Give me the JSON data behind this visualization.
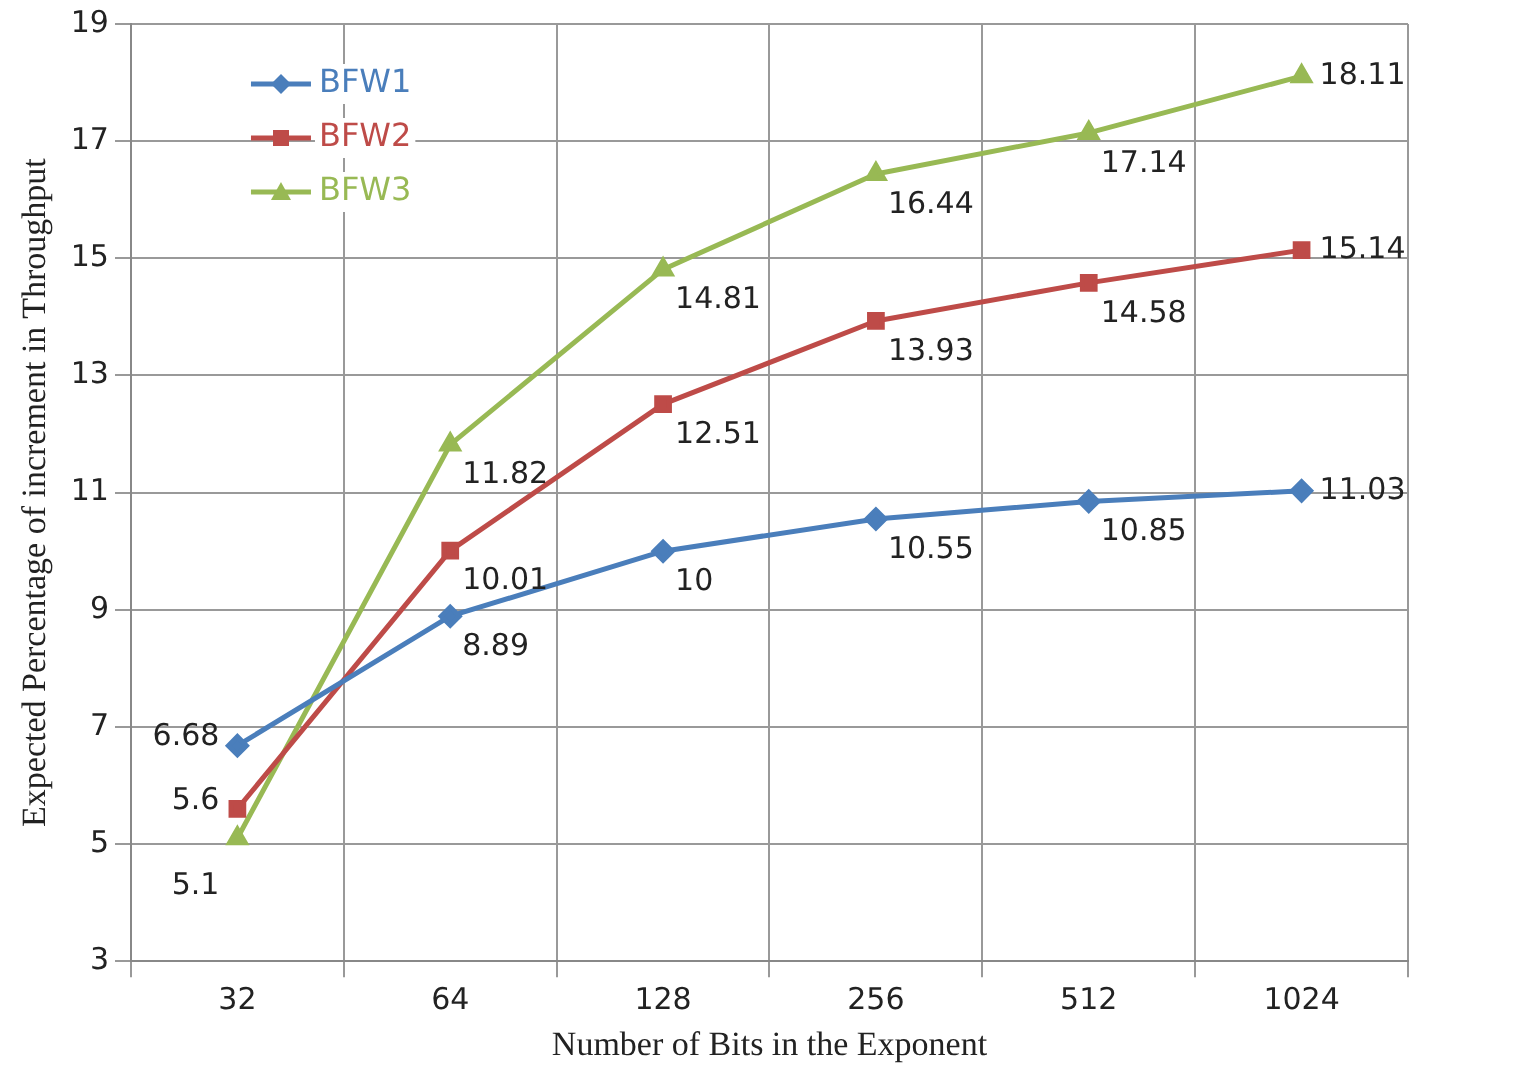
{
  "chart_data": {
    "type": "line",
    "xlabel": "Number of Bits in the Exponent",
    "ylabel": "Expected Percentage of increment in Throughput",
    "categories": [
      "32",
      "64",
      "128",
      "256",
      "512",
      "1024"
    ],
    "series": [
      {
        "name": "BFW1",
        "color": "#4a7ebb",
        "marker": "diamond",
        "values": [
          6.68,
          8.89,
          10,
          10.55,
          10.85,
          11.03
        ]
      },
      {
        "name": "BFW2",
        "color": "#be4b48",
        "marker": "square",
        "values": [
          5.6,
          10.01,
          12.51,
          13.93,
          14.58,
          15.14
        ]
      },
      {
        "name": "BFW3",
        "color": "#98b954",
        "marker": "triangle",
        "values": [
          5.1,
          11.82,
          14.81,
          16.44,
          17.14,
          18.11
        ]
      }
    ],
    "ylim": [
      3,
      19
    ],
    "yticks": [
      3,
      5,
      7,
      9,
      11,
      13,
      15,
      17,
      19
    ],
    "grid": true,
    "legend": "top left",
    "data_labels": true,
    "line_style": "solid"
  }
}
